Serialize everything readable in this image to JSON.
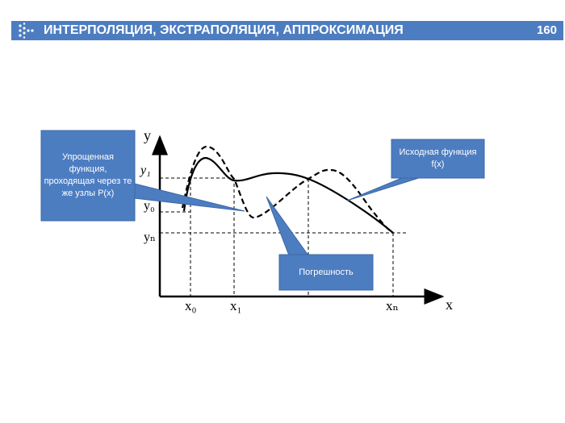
{
  "header": {
    "title": "ИНТЕРПОЛЯЦИЯ, ЭКСТРАПОЛЯЦИЯ, АППРОКСИМАЦИЯ",
    "page_number": "160",
    "icon": "dotted-arrow-icon",
    "color": "#4d7dc1"
  },
  "axes": {
    "x_label": "x",
    "y_label": "y",
    "x_ticks": [
      "x₀",
      "x₁",
      "xₙ"
    ],
    "y_ticks": [
      "y₁",
      "y₀",
      "yₙ"
    ]
  },
  "curves": {
    "original": {
      "style": "solid",
      "color": "#000000"
    },
    "interpolating": {
      "style": "dashed",
      "color": "#000000"
    }
  },
  "callouts": {
    "simplified": "Упрощенная функция, проходящая через те же узлы P(x)",
    "original": "Исходная функция f(x)",
    "error": "Погрешность"
  },
  "callout_color": "#4d7dc1"
}
